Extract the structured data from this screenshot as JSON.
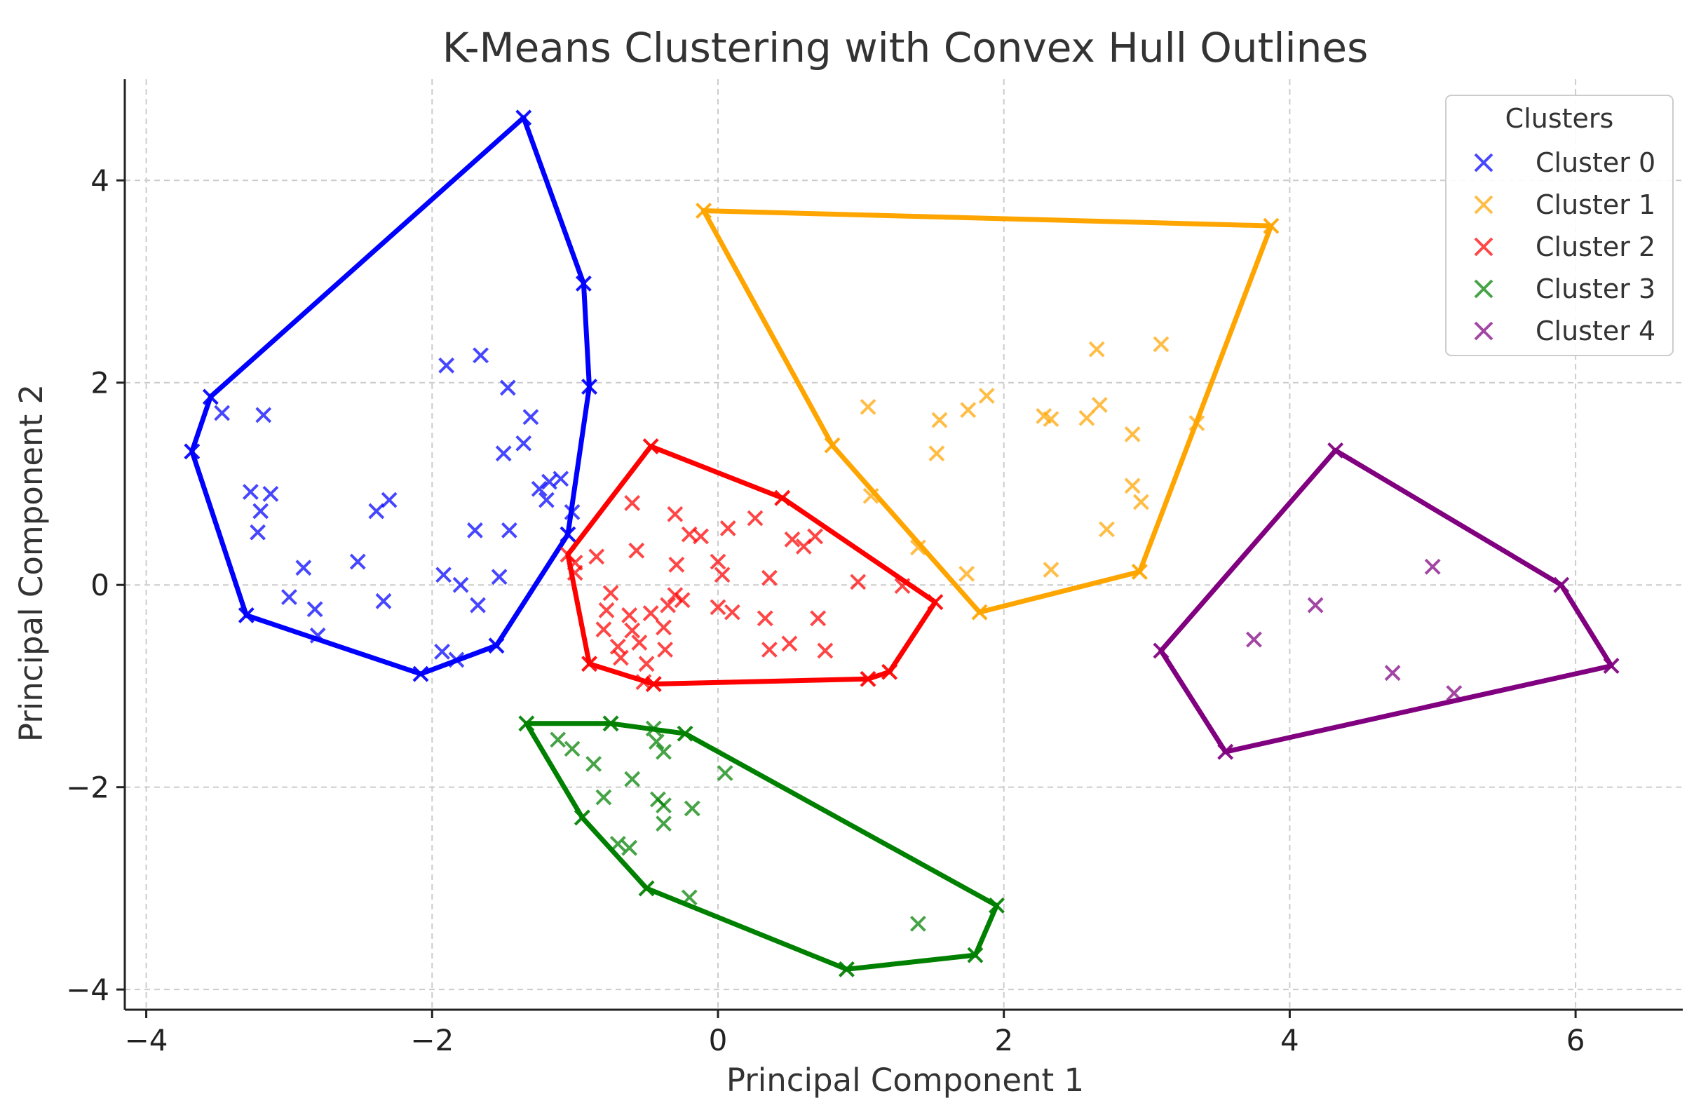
{
  "chart_data": {
    "type": "scatter",
    "title": "K-Means Clustering with Convex Hull Outlines",
    "xlabel": "Principal Component 1",
    "ylabel": "Principal Component 2",
    "xlim": [
      -4.15,
      6.75
    ],
    "ylim": [
      -4.2,
      5.0
    ],
    "xticks": [
      -4,
      -2,
      0,
      2,
      4,
      6
    ],
    "yticks": [
      -4,
      -2,
      0,
      2,
      4
    ],
    "xtick_labels": [
      "−4",
      "−2",
      "0",
      "2",
      "4",
      "6"
    ],
    "ytick_labels": [
      "−4",
      "−2",
      "0",
      "2",
      "4"
    ],
    "grid": true,
    "legend": {
      "title": "Clusters",
      "position": "top-right"
    },
    "series": [
      {
        "name": "Cluster 0",
        "color": "#0000ff",
        "points": [
          [
            -1.36,
            4.62
          ],
          [
            -0.94,
            2.98
          ],
          [
            -0.9,
            1.96
          ],
          [
            -3.55,
            1.86
          ],
          [
            -3.47,
            1.7
          ],
          [
            -3.18,
            1.68
          ],
          [
            -3.68,
            1.32
          ],
          [
            -1.9,
            2.17
          ],
          [
            -1.66,
            2.27
          ],
          [
            -1.47,
            1.95
          ],
          [
            -1.31,
            1.66
          ],
          [
            -1.36,
            1.4
          ],
          [
            -1.5,
            1.3
          ],
          [
            -3.27,
            0.92
          ],
          [
            -3.13,
            0.9
          ],
          [
            -3.2,
            0.73
          ],
          [
            -3.22,
            0.52
          ],
          [
            -2.39,
            0.73
          ],
          [
            -2.3,
            0.84
          ],
          [
            -1.18,
            1.02
          ],
          [
            -1.25,
            0.95
          ],
          [
            -1.1,
            1.05
          ],
          [
            -1.2,
            0.84
          ],
          [
            -1.46,
            0.54
          ],
          [
            -1.7,
            0.54
          ],
          [
            -1.02,
            0.72
          ],
          [
            -1.05,
            0.5
          ],
          [
            -2.9,
            0.17
          ],
          [
            -2.52,
            0.23
          ],
          [
            -1.92,
            0.1
          ],
          [
            -1.8,
            0.0
          ],
          [
            -1.53,
            0.08
          ],
          [
            -3.0,
            -0.12
          ],
          [
            -2.82,
            -0.24
          ],
          [
            -2.34,
            -0.16
          ],
          [
            -1.68,
            -0.2
          ],
          [
            -3.3,
            -0.3
          ],
          [
            -2.8,
            -0.5
          ],
          [
            -1.55,
            -0.6
          ],
          [
            -1.93,
            -0.66
          ],
          [
            -1.83,
            -0.74
          ],
          [
            -2.08,
            -0.88
          ]
        ],
        "hull": [
          [
            -1.36,
            4.62
          ],
          [
            -0.94,
            2.98
          ],
          [
            -0.9,
            1.96
          ],
          [
            -1.05,
            0.5
          ],
          [
            -1.55,
            -0.6
          ],
          [
            -2.08,
            -0.88
          ],
          [
            -3.3,
            -0.3
          ],
          [
            -3.68,
            1.32
          ],
          [
            -3.55,
            1.86
          ],
          [
            -1.36,
            4.62
          ]
        ]
      },
      {
        "name": "Cluster 1",
        "color": "#ffa500",
        "points": [
          [
            -0.1,
            3.7
          ],
          [
            3.87,
            3.55
          ],
          [
            2.65,
            2.33
          ],
          [
            3.1,
            2.38
          ],
          [
            1.05,
            1.76
          ],
          [
            1.55,
            1.63
          ],
          [
            1.75,
            1.73
          ],
          [
            1.88,
            1.87
          ],
          [
            2.28,
            1.67
          ],
          [
            2.33,
            1.64
          ],
          [
            2.58,
            1.65
          ],
          [
            2.67,
            1.78
          ],
          [
            2.9,
            1.49
          ],
          [
            3.35,
            1.6
          ],
          [
            0.8,
            1.38
          ],
          [
            1.53,
            1.3
          ],
          [
            1.07,
            0.88
          ],
          [
            2.9,
            0.98
          ],
          [
            2.96,
            0.82
          ],
          [
            2.72,
            0.55
          ],
          [
            1.4,
            0.37
          ],
          [
            1.74,
            0.11
          ],
          [
            2.33,
            0.15
          ],
          [
            2.95,
            0.13
          ],
          [
            1.83,
            -0.27
          ]
        ],
        "hull": [
          [
            -0.1,
            3.7
          ],
          [
            3.87,
            3.55
          ],
          [
            2.95,
            0.13
          ],
          [
            1.83,
            -0.27
          ],
          [
            0.8,
            1.38
          ],
          [
            -0.1,
            3.7
          ]
        ]
      },
      {
        "name": "Cluster 2",
        "color": "#ff0000",
        "points": [
          [
            -0.47,
            1.37
          ],
          [
            0.45,
            0.86
          ],
          [
            -0.6,
            0.81
          ],
          [
            -0.3,
            0.7
          ],
          [
            0.26,
            0.66
          ],
          [
            0.07,
            0.56
          ],
          [
            -0.2,
            0.5
          ],
          [
            -0.12,
            0.48
          ],
          [
            0.68,
            0.48
          ],
          [
            0.52,
            0.45
          ],
          [
            0.6,
            0.38
          ],
          [
            -1.0,
            0.22
          ],
          [
            -0.85,
            0.28
          ],
          [
            -0.57,
            0.34
          ],
          [
            -0.29,
            0.2
          ],
          [
            0.0,
            0.23
          ],
          [
            0.03,
            0.1
          ],
          [
            0.36,
            0.07
          ],
          [
            0.98,
            0.03
          ],
          [
            1.29,
            -0.01
          ],
          [
            -1.0,
            0.12
          ],
          [
            -0.75,
            -0.08
          ],
          [
            -0.3,
            -0.1
          ],
          [
            -0.25,
            -0.15
          ],
          [
            -0.78,
            -0.25
          ],
          [
            -0.62,
            -0.3
          ],
          [
            -0.47,
            -0.28
          ],
          [
            -0.35,
            -0.2
          ],
          [
            0.0,
            -0.22
          ],
          [
            0.1,
            -0.27
          ],
          [
            0.33,
            -0.33
          ],
          [
            0.7,
            -0.33
          ],
          [
            1.52,
            -0.17
          ],
          [
            -0.8,
            -0.44
          ],
          [
            -0.6,
            -0.45
          ],
          [
            -0.38,
            -0.42
          ],
          [
            -0.55,
            -0.57
          ],
          [
            -0.7,
            -0.61
          ],
          [
            -0.37,
            -0.64
          ],
          [
            -0.68,
            -0.72
          ],
          [
            -0.5,
            -0.78
          ],
          [
            0.36,
            -0.64
          ],
          [
            0.5,
            -0.58
          ],
          [
            0.75,
            -0.65
          ],
          [
            -0.9,
            -0.78
          ],
          [
            -0.52,
            -0.96
          ],
          [
            -0.45,
            -0.98
          ],
          [
            1.05,
            -0.93
          ],
          [
            1.2,
            -0.86
          ]
        ],
        "hull": [
          [
            -0.47,
            1.37
          ],
          [
            0.45,
            0.86
          ],
          [
            1.52,
            -0.17
          ],
          [
            1.2,
            -0.86
          ],
          [
            1.05,
            -0.93
          ],
          [
            -0.45,
            -0.98
          ],
          [
            -0.9,
            -0.78
          ],
          [
            -1.05,
            0.3
          ],
          [
            -0.47,
            1.37
          ]
        ]
      },
      {
        "name": "Cluster 3",
        "color": "#008000",
        "points": [
          [
            -1.34,
            -1.37
          ],
          [
            -0.75,
            -1.37
          ],
          [
            -0.45,
            -1.42
          ],
          [
            -0.23,
            -1.47
          ],
          [
            -1.12,
            -1.53
          ],
          [
            -1.02,
            -1.62
          ],
          [
            -0.43,
            -1.55
          ],
          [
            -0.38,
            -1.65
          ],
          [
            -0.87,
            -1.77
          ],
          [
            -0.6,
            -1.92
          ],
          [
            0.05,
            -1.86
          ],
          [
            -0.8,
            -2.1
          ],
          [
            -0.42,
            -2.12
          ],
          [
            -0.38,
            -2.18
          ],
          [
            -0.18,
            -2.21
          ],
          [
            -0.95,
            -2.3
          ],
          [
            -0.38,
            -2.36
          ],
          [
            -0.7,
            -2.56
          ],
          [
            -0.62,
            -2.6
          ],
          [
            -0.5,
            -3.0
          ],
          [
            -0.2,
            -3.09
          ],
          [
            1.4,
            -3.35
          ],
          [
            1.95,
            -3.17
          ],
          [
            1.8,
            -3.66
          ],
          [
            0.9,
            -3.8
          ]
        ],
        "hull": [
          [
            -1.34,
            -1.37
          ],
          [
            -0.75,
            -1.37
          ],
          [
            -0.23,
            -1.47
          ],
          [
            1.95,
            -3.17
          ],
          [
            1.8,
            -3.66
          ],
          [
            0.9,
            -3.8
          ],
          [
            -0.5,
            -3.0
          ],
          [
            -0.95,
            -2.3
          ],
          [
            -1.34,
            -1.37
          ]
        ]
      },
      {
        "name": "Cluster 4",
        "color": "#800080",
        "points": [
          [
            4.32,
            1.33
          ],
          [
            5.0,
            0.18
          ],
          [
            4.18,
            -0.2
          ],
          [
            5.9,
            0.0
          ],
          [
            3.75,
            -0.54
          ],
          [
            3.1,
            -0.65
          ],
          [
            4.72,
            -0.87
          ],
          [
            6.25,
            -0.8
          ],
          [
            5.15,
            -1.07
          ],
          [
            3.55,
            -1.65
          ]
        ],
        "hull": [
          [
            4.32,
            1.33
          ],
          [
            5.9,
            0.0
          ],
          [
            6.25,
            -0.8
          ],
          [
            3.55,
            -1.65
          ],
          [
            3.1,
            -0.65
          ],
          [
            4.32,
            1.33
          ]
        ]
      }
    ]
  }
}
